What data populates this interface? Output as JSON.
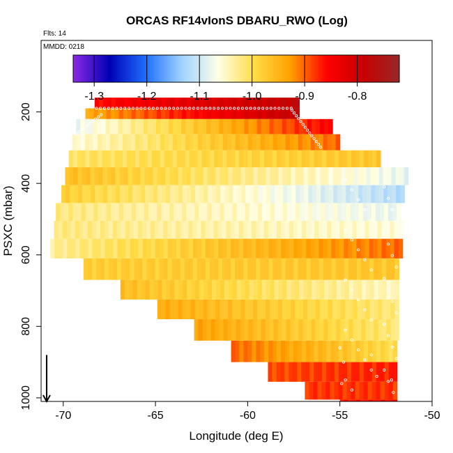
{
  "chart_data": {
    "type": "heatmap",
    "title": "ORCAS RF14vIonS DBARU_RWO (Log)",
    "flights_label": "Flts: 14",
    "date_label": "MMDD: 0218",
    "xlabel": "Longitude (deg E)",
    "ylabel": "PSXC (mbar)",
    "xlim": [
      -71.2,
      -50
    ],
    "ylim": [
      1010,
      0
    ],
    "xticks": [
      -70,
      -65,
      -60,
      -55,
      -50
    ],
    "yticks": [
      200,
      400,
      600,
      800,
      1000
    ],
    "colorbar": {
      "range": [
        -1.34,
        -0.72
      ],
      "ticks": [
        -1.3,
        -1.2,
        -1.1,
        -1.0,
        -0.9,
        -0.8
      ],
      "tick_labels": [
        "-1.3",
        "-1.2",
        "-1.1",
        "-1.0",
        "-0.9",
        "-0.8"
      ],
      "colors": [
        "#8a2be2",
        "#0000b4",
        "#1e6eff",
        "#a0d2ff",
        "#ffffe6",
        "#ffdc46",
        "#ffa000",
        "#ff0000",
        "#c80000",
        "#962828"
      ]
    },
    "rows": [
      {
        "p": 180,
        "x0": -68.3,
        "x1": -57.2,
        "v0": -0.86,
        "v1": -0.78
      },
      {
        "p": 200,
        "x0": -68.8,
        "x1": -57.2,
        "v0": -0.94,
        "v1": -0.78
      },
      {
        "p": 240,
        "x0": -69.3,
        "x1": -55.4,
        "v0": -1.08,
        "v1": -0.85
      },
      {
        "p": 285,
        "x0": -69.5,
        "x1": -55.0,
        "v0": -1.06,
        "v1": -0.9
      },
      {
        "p": 330,
        "x0": -69.7,
        "x1": -52.8,
        "v0": -1.01,
        "v1": -0.97
      },
      {
        "p": 380,
        "x0": -69.9,
        "x1": -51.3,
        "v0": -0.96,
        "v1": -1.08
      },
      {
        "p": 430,
        "x0": -70.1,
        "x1": -51.5,
        "v0": -0.98,
        "v1": -1.12
      },
      {
        "p": 480,
        "x0": -70.4,
        "x1": -51.7,
        "v0": -1.02,
        "v1": -1.08
      },
      {
        "p": 530,
        "x0": -70.5,
        "x1": -51.6,
        "v0": -1.02,
        "v1": -1.06
      },
      {
        "p": 580,
        "x0": -70.7,
        "x1": -51.6,
        "v0": -1.03,
        "v1": -0.9
      },
      {
        "p": 640,
        "x0": -68.9,
        "x1": -51.8,
        "v0": -0.98,
        "v1": -0.97
      },
      {
        "p": 700,
        "x0": -66.9,
        "x1": -51.8,
        "v0": -0.96,
        "v1": -1.05
      },
      {
        "p": 750,
        "x0": -64.9,
        "x1": -51.8,
        "v0": -0.94,
        "v1": -1.02
      },
      {
        "p": 810,
        "x0": -62.9,
        "x1": -51.8,
        "v0": -0.93,
        "v1": -1.02
      },
      {
        "p": 870,
        "x0": -60.9,
        "x1": -51.9,
        "v0": -0.9,
        "v1": -1.0
      },
      {
        "p": 930,
        "x0": -58.9,
        "x1": -51.9,
        "v0": -0.89,
        "v1": -0.87
      },
      {
        "p": 980,
        "x0": -56.9,
        "x1": -51.9,
        "v0": -0.88,
        "v1": -0.88
      },
      {
        "p": 1030,
        "x0": -55.0,
        "x1": -51.9,
        "v0": -0.87,
        "v1": -0.86
      }
    ],
    "annotation": "arrow at -70.9 pointing down to 1010 mbar"
  }
}
